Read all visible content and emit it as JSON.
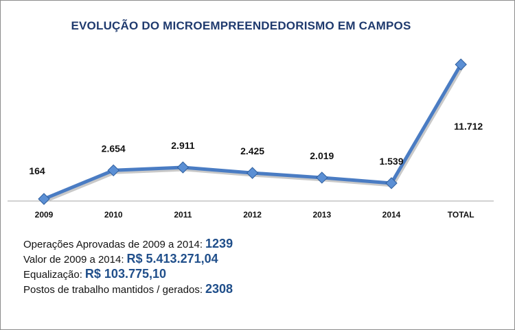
{
  "chart_data": {
    "type": "line",
    "title": "EVOLUÇÃO DO MICROEMPREENDEDORISMO EM CAMPOS",
    "categories": [
      "2009",
      "2010",
      "2011",
      "2012",
      "2013",
      "2014",
      "TOTAL"
    ],
    "values": [
      164,
      2654,
      2911,
      2425,
      2019,
      1539,
      11712
    ],
    "data_labels": [
      "164",
      "2.654",
      "2.911",
      "2.425",
      "2.019",
      "1.539",
      "11.712"
    ],
    "xlabel": "",
    "ylabel": "",
    "ylim": [
      0,
      11712
    ],
    "grid": false,
    "series_color": "#4a7cc3",
    "marker_color": "#5b8fd4"
  },
  "stats": [
    {
      "label": "Operações Aprovadas  de 2009 a 2014:",
      "value": "1239"
    },
    {
      "label": "Valor de 2009 a 2014:",
      "value": "R$ 5.413.271,04"
    },
    {
      "label": "Equalização:",
      "value": "R$ 103.775,10"
    },
    {
      "label": "Postos de trabalho mantidos / gerados:",
      "value": "2308"
    }
  ]
}
